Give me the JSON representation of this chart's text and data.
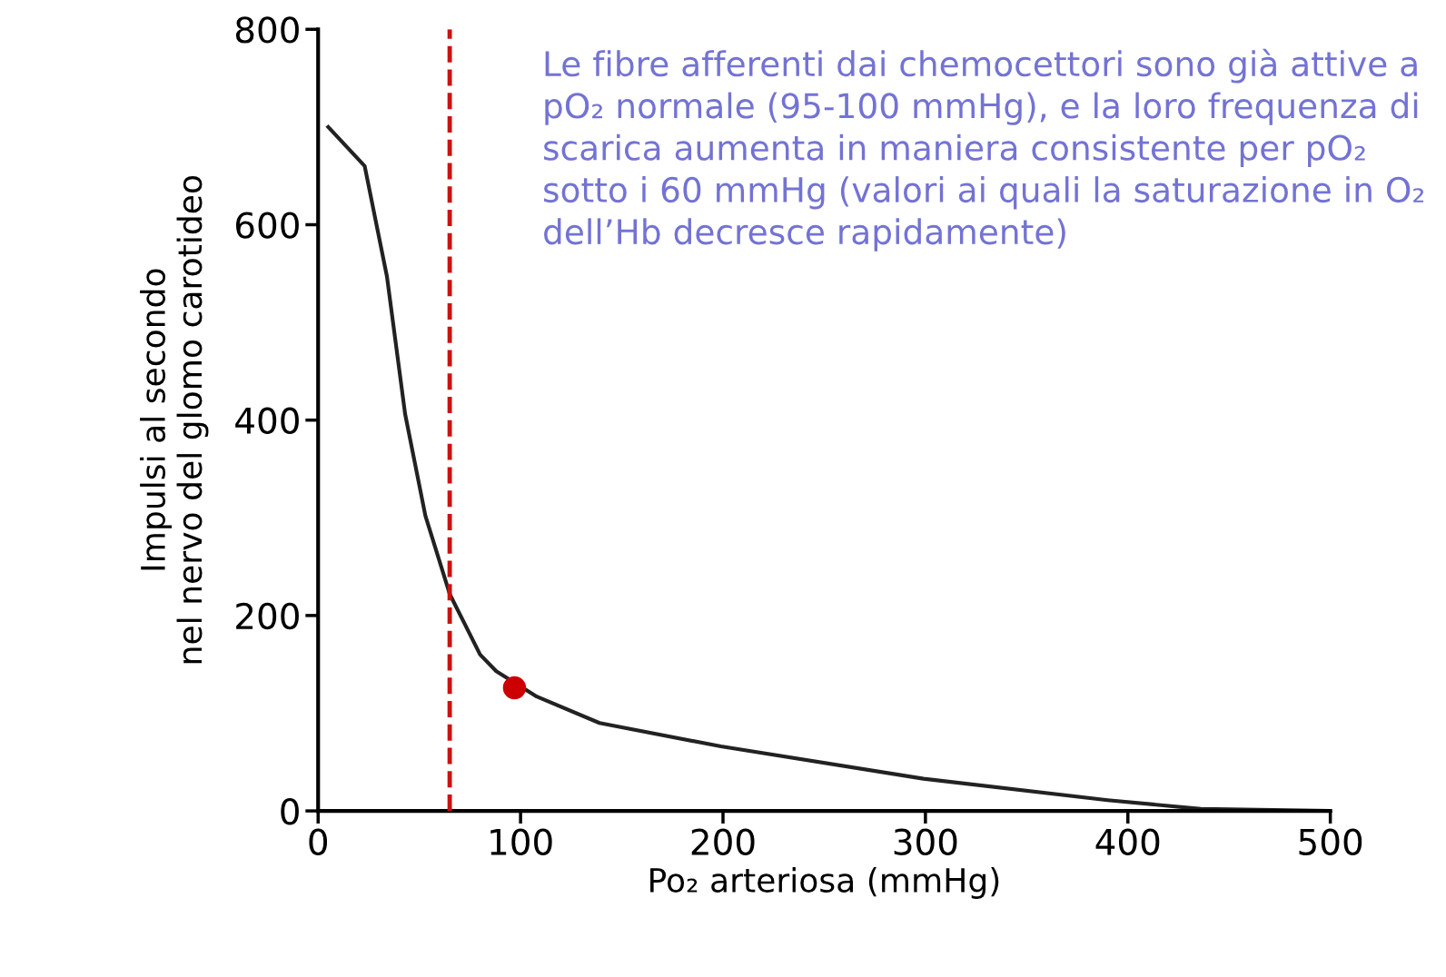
{
  "chart_data": {
    "type": "line",
    "xlabel": "Po₂ arteriosa (mmHg)",
    "ylabel": "Impulsi al secondo\nnel nervo del glomo carotideo",
    "xlim": [
      0,
      500
    ],
    "ylim": [
      0,
      800
    ],
    "xticks": [
      0,
      100,
      200,
      300,
      400,
      500
    ],
    "yticks": [
      0,
      200,
      400,
      600,
      800
    ],
    "grid": false,
    "series": [
      {
        "color": "#222222",
        "marker": "none",
        "line_style": "solid",
        "x": [
          5,
          23,
          34,
          43,
          53,
          65,
          80,
          88,
          108,
          139,
          199,
          299,
          390,
          436,
          500
        ],
        "values": [
          700,
          660,
          547,
          406,
          302,
          222,
          160,
          143,
          117,
          90,
          66,
          33,
          11,
          2,
          0
        ]
      },
      {
        "type": "scatter",
        "color": "#cc0000",
        "marker": "circle",
        "x": [
          97
        ],
        "values": [
          126
        ]
      }
    ],
    "ref_lines": [
      {
        "axis": "x",
        "value": 65,
        "color": "#cc1111",
        "line_style": "dashed"
      }
    ],
    "annotations": [
      "Le fibre afferenti dai chemocettori sono già attive a pO₂ normale (95-100 mmHg), e la loro frequenza di scarica aumenta in maniera consistente per pO₂ sotto i 60 mmHg (valori ai quali la saturazione in O₂ dell’Hb decresce rapidamente)"
    ]
  }
}
